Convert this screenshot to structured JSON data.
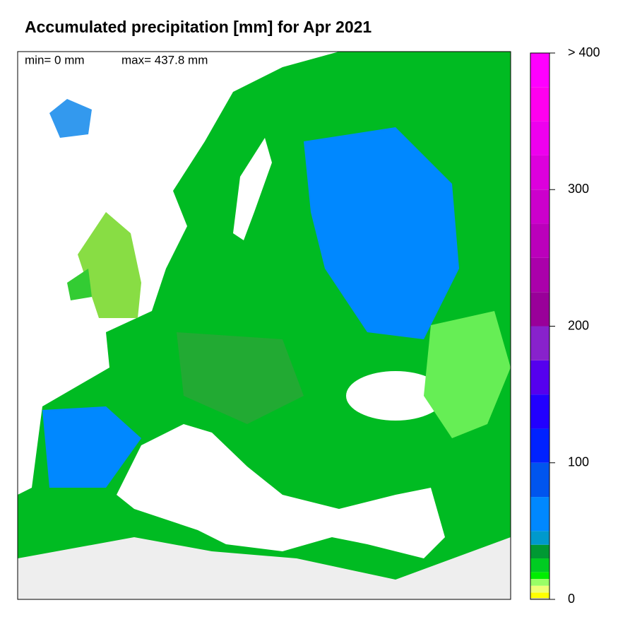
{
  "header": {
    "title": "Accumulated precipitation [mm] for Apr 2021",
    "min_label": "min= 0 mm",
    "max_label": "max= 437.8 mm"
  },
  "colorbar": {
    "bins": [
      0,
      1,
      5,
      10,
      15,
      20,
      30,
      40,
      50,
      75,
      100,
      125,
      150,
      175,
      200,
      225,
      250,
      275,
      300,
      325,
      350,
      375,
      400
    ],
    "colors": [
      "#c8c8b4",
      "#ffff00",
      "#eeff77",
      "#99ff66",
      "#00ee00",
      "#00cc22",
      "#009933",
      "#0099cc",
      "#0088ff",
      "#0055ee",
      "#0022ff",
      "#2200ff",
      "#5500ee",
      "#8822cc",
      "#990099",
      "#aa00aa",
      "#bb00bb",
      "#cc00cc",
      "#dd00dd",
      "#ee00ee",
      "#ff00ee",
      "#ff00ff"
    ],
    "ylim": [
      0,
      400
    ],
    "yticks": [
      0,
      100,
      200,
      300,
      {
        "value": 400,
        "label": "> 400"
      }
    ]
  }
}
